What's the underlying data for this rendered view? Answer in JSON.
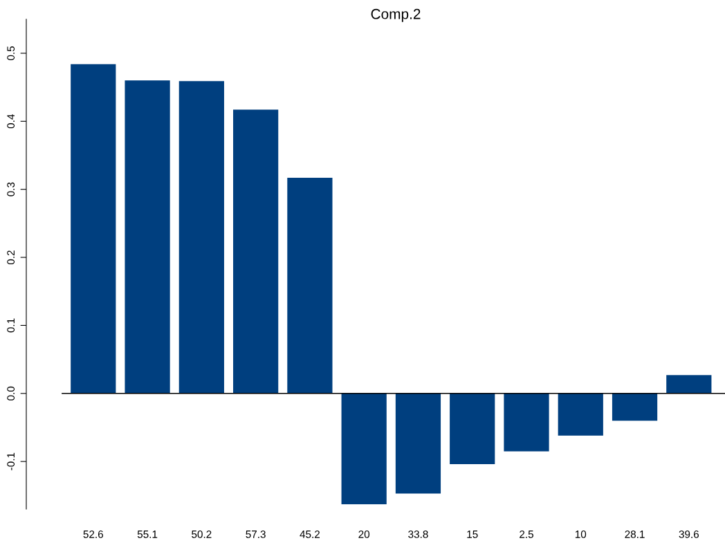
{
  "chart_data": {
    "type": "bar",
    "title": "Comp.2",
    "categories": [
      "52.6",
      "55.1",
      "50.2",
      "57.3",
      "45.2",
      "20",
      "33.8",
      "15",
      "2.5",
      "10",
      "28.1",
      "39.6"
    ],
    "values": [
      0.484,
      0.46,
      0.459,
      0.417,
      0.317,
      -0.163,
      -0.147,
      -0.104,
      -0.085,
      -0.062,
      -0.04,
      0.027
    ],
    "color": "#003f7f",
    "ylim": [
      -0.17,
      0.55
    ],
    "yticks": [
      {
        "value": -0.1,
        "label": "-0.1"
      },
      {
        "value": 0,
        "label": "0.0"
      },
      {
        "value": 0.1,
        "label": "0.1"
      },
      {
        "value": 0.2,
        "label": "0.2"
      },
      {
        "value": 0.3,
        "label": "0.3"
      },
      {
        "value": 0.4,
        "label": "0.4"
      },
      {
        "value": 0.5,
        "label": "0.5"
      }
    ]
  }
}
